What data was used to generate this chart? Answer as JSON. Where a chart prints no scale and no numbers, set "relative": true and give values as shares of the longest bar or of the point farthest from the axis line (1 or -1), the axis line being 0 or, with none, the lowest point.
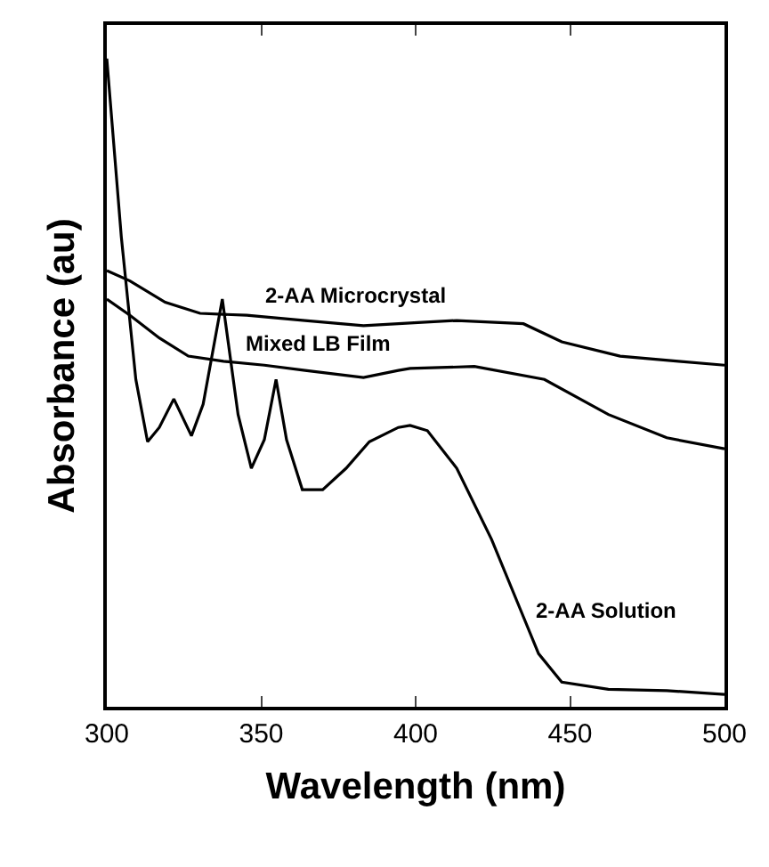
{
  "chart_data": {
    "type": "line",
    "xlabel": "Wavelength (nm)",
    "ylabel": "Absorbance (au)",
    "relative": true,
    "xlim": [
      300,
      500
    ],
    "xticks": [
      300,
      350,
      400,
      450,
      500
    ],
    "legend": false,
    "marker": "none",
    "line_style": "solid",
    "series": [
      {
        "name": "2-AA Microcrystal",
        "color": "#000000",
        "x": [
          300,
          307.5,
          318.9,
          330.2,
          345.3,
          364.2,
          383.1,
          402,
          413.3,
          434.9,
          447.3,
          466.2,
          485.1,
          500
        ],
        "values": [
          0.673,
          0.657,
          0.624,
          0.607,
          0.604,
          0.596,
          0.588,
          0.593,
          0.596,
          0.591,
          0.563,
          0.541,
          0.533,
          0.527
        ]
      },
      {
        "name": "Mixed LB Film",
        "color": "#000000",
        "x": [
          300,
          307.5,
          317,
          326.4,
          337.8,
          351,
          364.2,
          383.1,
          394.4,
          398.2,
          419,
          441.7,
          462.4,
          481.3,
          500
        ],
        "values": [
          0.629,
          0.604,
          0.569,
          0.541,
          0.533,
          0.527,
          0.519,
          0.508,
          0.519,
          0.522,
          0.525,
          0.505,
          0.451,
          0.415,
          0.398
        ]
      },
      {
        "name": "2-AA Solution",
        "color": "#000000",
        "x": [
          300,
          304.7,
          309.4,
          313.2,
          317,
          321.7,
          327.4,
          331.2,
          337.4,
          342.5,
          346.8,
          351,
          354.8,
          358.2,
          363.3,
          369.9,
          377.5,
          385,
          394.4,
          398.2,
          403.8,
          413.3,
          424.6,
          434.1,
          439.8,
          447.3,
          462.4,
          481.3,
          500
        ],
        "values": [
          1.0,
          0.725,
          0.505,
          0.409,
          0.431,
          0.475,
          0.418,
          0.467,
          0.629,
          0.451,
          0.368,
          0.412,
          0.505,
          0.412,
          0.335,
          0.335,
          0.368,
          0.409,
          0.431,
          0.434,
          0.426,
          0.368,
          0.258,
          0.148,
          0.082,
          0.038,
          0.027,
          0.025,
          0.019
        ]
      }
    ]
  }
}
